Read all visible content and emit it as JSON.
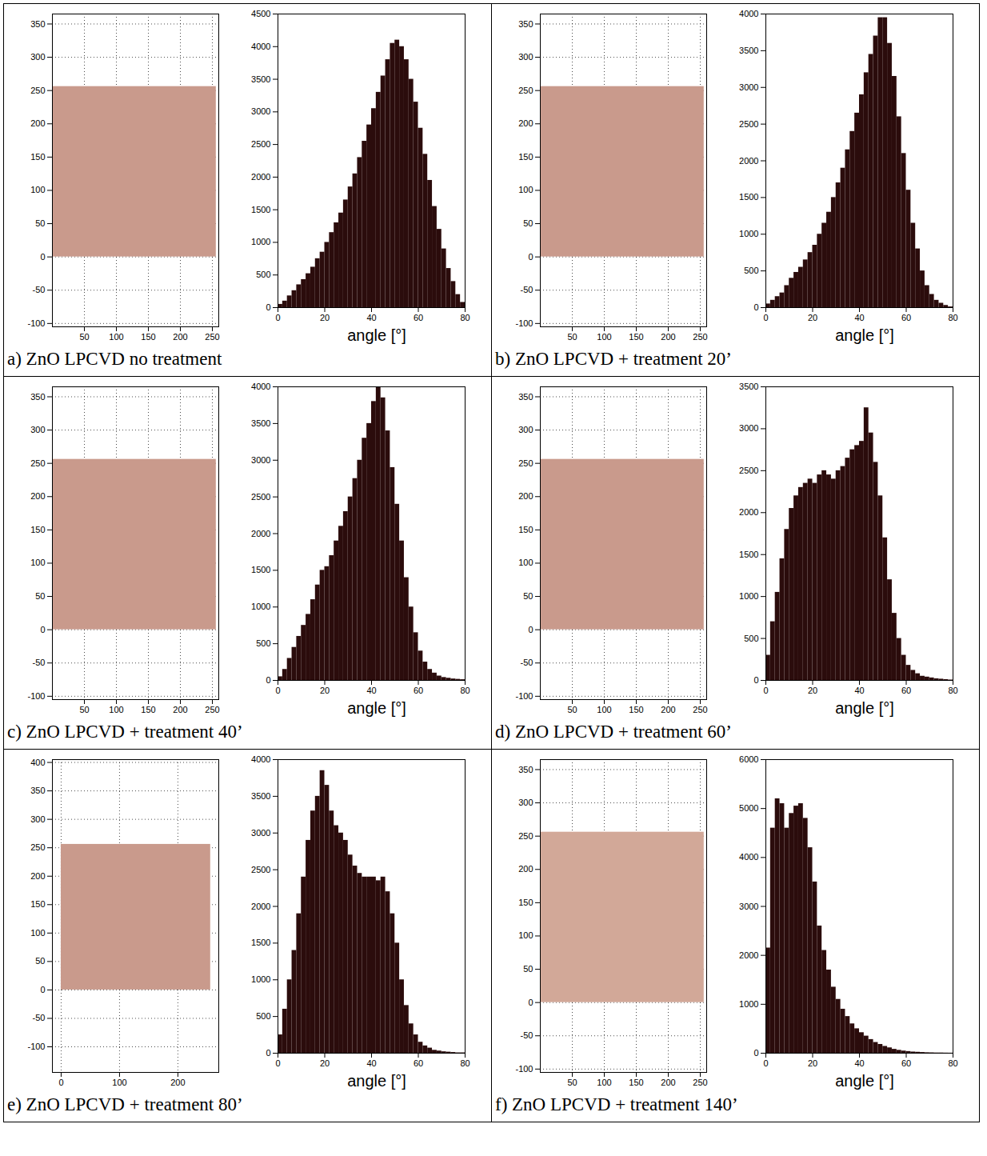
{
  "chart_data": [
    {
      "type": "histogram",
      "title": "a) ZnO LPCVD no treatment",
      "xlabel": "angle [°]",
      "bins": [
        0,
        2,
        4,
        6,
        8,
        10,
        12,
        14,
        16,
        18,
        20,
        22,
        24,
        26,
        28,
        30,
        32,
        34,
        36,
        38,
        40,
        42,
        44,
        46,
        48,
        50,
        52,
        54,
        56,
        58,
        60,
        62,
        64,
        66,
        68,
        70,
        72,
        74,
        76,
        78,
        80
      ],
      "values": [
        50,
        100,
        180,
        260,
        350,
        430,
        520,
        620,
        750,
        850,
        1000,
        1150,
        1300,
        1450,
        1650,
        1850,
        2050,
        2300,
        2550,
        2800,
        3050,
        3300,
        3550,
        3800,
        4050,
        4100,
        4000,
        3800,
        3500,
        3150,
        2750,
        2350,
        1950,
        1550,
        1200,
        900,
        600,
        400,
        200,
        80
      ],
      "color": "#2b0c0c",
      "xlim": [
        0,
        80
      ],
      "xticks": [
        0,
        20,
        40,
        60,
        80
      ],
      "ylim": [
        0,
        4500
      ],
      "yticks": [
        0,
        500,
        1000,
        1500,
        2000,
        2500,
        3000,
        3500,
        4000,
        4500
      ],
      "image": {
        "type": "image",
        "extent": [
          0,
          256
        ],
        "color": "#c99a8c",
        "grid": true,
        "xlim": [
          0,
          260
        ],
        "xticks": [
          50,
          100,
          150,
          200,
          250
        ],
        "ylim": [
          -105,
          365
        ],
        "yticks": [
          -100,
          -50,
          0,
          50,
          100,
          150,
          200,
          250,
          300,
          350
        ]
      }
    },
    {
      "type": "histogram",
      "title": "b) ZnO LPCVD + treatment 20’",
      "xlabel": "angle [°]",
      "bins": [
        0,
        2,
        4,
        6,
        8,
        10,
        12,
        14,
        16,
        18,
        20,
        22,
        24,
        26,
        28,
        30,
        32,
        34,
        36,
        38,
        40,
        42,
        44,
        46,
        48,
        50,
        52,
        54,
        56,
        58,
        60,
        62,
        64,
        66,
        68,
        70,
        72,
        74,
        76,
        78,
        80
      ],
      "values": [
        50,
        100,
        150,
        200,
        300,
        400,
        480,
        550,
        650,
        750,
        850,
        1000,
        1150,
        1300,
        1500,
        1700,
        1900,
        2150,
        2400,
        2650,
        2900,
        3200,
        3450,
        3700,
        3950,
        3950,
        3600,
        3150,
        2600,
        2100,
        1600,
        1150,
        800,
        500,
        300,
        180,
        100,
        60,
        30,
        10
      ],
      "color": "#2b0c0c",
      "xlim": [
        0,
        80
      ],
      "xticks": [
        0,
        20,
        40,
        60,
        80
      ],
      "ylim": [
        0,
        4000
      ],
      "yticks": [
        0,
        500,
        1000,
        1500,
        2000,
        2500,
        3000,
        3500,
        4000
      ],
      "image": {
        "type": "image",
        "extent": [
          0,
          256
        ],
        "color": "#c99a8c",
        "grid": true,
        "xlim": [
          0,
          260
        ],
        "xticks": [
          50,
          100,
          150,
          200,
          250
        ],
        "ylim": [
          -105,
          365
        ],
        "yticks": [
          -100,
          -50,
          0,
          50,
          100,
          150,
          200,
          250,
          300,
          350
        ]
      }
    },
    {
      "type": "histogram",
      "title": "c) ZnO LPCVD + treatment 40’",
      "xlabel": "angle [°]",
      "bins": [
        0,
        2,
        4,
        6,
        8,
        10,
        12,
        14,
        16,
        18,
        20,
        22,
        24,
        26,
        28,
        30,
        32,
        34,
        36,
        38,
        40,
        42,
        44,
        46,
        48,
        50,
        52,
        54,
        56,
        58,
        60,
        62,
        64,
        66,
        68,
        70,
        72,
        74,
        76,
        78,
        80
      ],
      "values": [
        50,
        150,
        300,
        450,
        600,
        750,
        900,
        1100,
        1300,
        1500,
        1550,
        1700,
        1900,
        2100,
        2300,
        2500,
        2750,
        3000,
        3300,
        3500,
        3800,
        4000,
        3850,
        3400,
        2900,
        2400,
        1900,
        1400,
        1000,
        650,
        400,
        250,
        150,
        100,
        60,
        40,
        30,
        20,
        15,
        10
      ],
      "color": "#2b0c0c",
      "xlim": [
        0,
        80
      ],
      "xticks": [
        0,
        20,
        40,
        60,
        80
      ],
      "ylim": [
        0,
        4000
      ],
      "yticks": [
        0,
        500,
        1000,
        1500,
        2000,
        2500,
        3000,
        3500,
        4000
      ],
      "image": {
        "type": "image",
        "extent": [
          0,
          256
        ],
        "color": "#c99a8c",
        "grid": true,
        "xlim": [
          0,
          260
        ],
        "xticks": [
          50,
          100,
          150,
          200,
          250
        ],
        "ylim": [
          -105,
          365
        ],
        "yticks": [
          -100,
          -50,
          0,
          50,
          100,
          150,
          200,
          250,
          300,
          350
        ]
      }
    },
    {
      "type": "histogram",
      "title": "d) ZnO LPCVD + treatment 60’",
      "xlabel": "angle [°]",
      "bins": [
        0,
        2,
        4,
        6,
        8,
        10,
        12,
        14,
        16,
        18,
        20,
        22,
        24,
        26,
        28,
        30,
        32,
        34,
        36,
        38,
        40,
        42,
        44,
        46,
        48,
        50,
        52,
        54,
        56,
        58,
        60,
        62,
        64,
        66,
        68,
        70,
        72,
        74,
        76,
        78,
        80
      ],
      "values": [
        300,
        700,
        1050,
        1450,
        1800,
        2050,
        2200,
        2300,
        2350,
        2400,
        2350,
        2450,
        2500,
        2450,
        2400,
        2500,
        2550,
        2650,
        2750,
        2800,
        2850,
        3250,
        2950,
        2600,
        2200,
        1700,
        1200,
        800,
        500,
        300,
        180,
        120,
        80,
        50,
        40,
        30,
        20,
        15,
        10,
        5
      ],
      "color": "#2b0c0c",
      "xlim": [
        0,
        80
      ],
      "xticks": [
        0,
        20,
        40,
        60,
        80
      ],
      "ylim": [
        0,
        3500
      ],
      "yticks": [
        0,
        500,
        1000,
        1500,
        2000,
        2500,
        3000,
        3500
      ],
      "image": {
        "type": "image",
        "extent": [
          0,
          256
        ],
        "color": "#c99a8c",
        "grid": true,
        "xlim": [
          0,
          260
        ],
        "xticks": [
          50,
          100,
          150,
          200,
          250
        ],
        "ylim": [
          -105,
          365
        ],
        "yticks": [
          -100,
          -50,
          0,
          50,
          100,
          150,
          200,
          250,
          300,
          350
        ]
      }
    },
    {
      "type": "histogram",
      "title": "e) ZnO LPCVD + treatment 80’",
      "xlabel": "angle [°]",
      "bins": [
        0,
        2,
        4,
        6,
        8,
        10,
        12,
        14,
        16,
        18,
        20,
        22,
        24,
        26,
        28,
        30,
        32,
        34,
        36,
        38,
        40,
        42,
        44,
        46,
        48,
        50,
        52,
        54,
        56,
        58,
        60,
        62,
        64,
        66,
        68,
        70,
        72,
        74,
        76,
        78,
        80
      ],
      "values": [
        250,
        600,
        1000,
        1400,
        1900,
        2400,
        2900,
        3300,
        3500,
        3850,
        3650,
        3300,
        3100,
        3000,
        2900,
        2700,
        2550,
        2450,
        2400,
        2400,
        2400,
        2350,
        2400,
        2200,
        1900,
        1500,
        1000,
        650,
        400,
        250,
        150,
        100,
        70,
        40,
        30,
        20,
        15,
        10,
        5,
        5
      ],
      "color": "#2b0c0c",
      "xlim": [
        0,
        80
      ],
      "xticks": [
        0,
        20,
        40,
        60,
        80
      ],
      "ylim": [
        0,
        4000
      ],
      "yticks": [
        0,
        500,
        1000,
        1500,
        2000,
        2500,
        3000,
        3500,
        4000
      ],
      "image": {
        "type": "image",
        "extent": [
          0,
          256
        ],
        "color": "#c99a8c",
        "grid": true,
        "xlim": [
          -15,
          270
        ],
        "xticks": [
          0,
          100,
          200
        ],
        "ylim": [
          -145,
          405
        ],
        "yticks": [
          -100,
          -50,
          0,
          50,
          100,
          150,
          200,
          250,
          300,
          350,
          400
        ]
      }
    },
    {
      "type": "histogram",
      "title": "f) ZnO LPCVD + treatment 140’",
      "xlabel": "angle [°]",
      "bins": [
        0,
        2,
        4,
        6,
        8,
        10,
        12,
        14,
        16,
        18,
        20,
        22,
        24,
        26,
        28,
        30,
        32,
        34,
        36,
        38,
        40,
        42,
        44,
        46,
        48,
        50,
        52,
        54,
        56,
        58,
        60,
        62,
        64,
        66,
        68,
        70,
        72,
        74,
        76,
        78,
        80
      ],
      "values": [
        2150,
        4600,
        5200,
        5100,
        4600,
        4900,
        5050,
        5100,
        4800,
        4200,
        3500,
        2600,
        2100,
        1700,
        1350,
        1100,
        900,
        750,
        600,
        500,
        420,
        350,
        280,
        220,
        180,
        140,
        110,
        80,
        60,
        45,
        35,
        25,
        20,
        15,
        10,
        8,
        5,
        5,
        3,
        2
      ],
      "color": "#2b0c0c",
      "xlim": [
        0,
        80
      ],
      "xticks": [
        0,
        20,
        40,
        60,
        80
      ],
      "ylim": [
        0,
        6000
      ],
      "yticks": [
        0,
        1000,
        2000,
        3000,
        4000,
        5000,
        6000
      ],
      "image": {
        "type": "image",
        "extent": [
          0,
          256
        ],
        "color": "#d2a898",
        "grid": true,
        "xlim": [
          0,
          260
        ],
        "xticks": [
          50,
          100,
          150,
          200,
          250
        ],
        "ylim": [
          -105,
          365
        ],
        "yticks": [
          -100,
          -50,
          0,
          50,
          100,
          150,
          200,
          250,
          300,
          350
        ]
      }
    }
  ]
}
